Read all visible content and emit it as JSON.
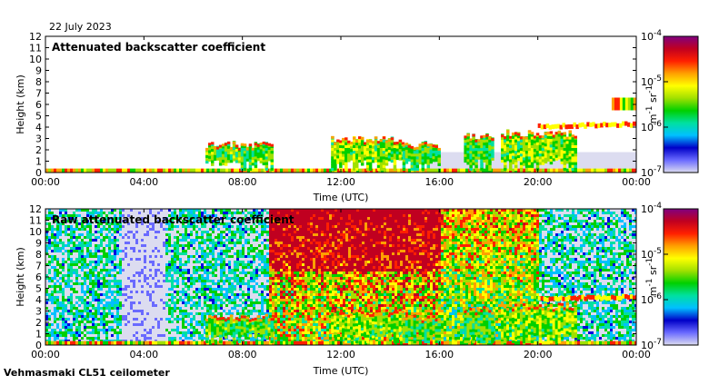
{
  "date_label": "22 July 2023",
  "instrument_label": "Vehmasmaki CL51 ceilometer",
  "colorbar": {
    "unit_main": "m",
    "unit_exp1": "-1",
    "unit_sr": "sr",
    "unit_exp2": "-1",
    "tick_labels": [
      {
        "base": "10",
        "exp": "-4"
      },
      {
        "base": "10",
        "exp": "-5"
      },
      {
        "base": "10",
        "exp": "-6"
      },
      {
        "base": "10",
        "exp": "-7"
      }
    ],
    "gradient_colors": [
      "#dcdcf0",
      "#6a6aff",
      "#0000c8",
      "#00c0ff",
      "#00e0a0",
      "#00d000",
      "#a0e000",
      "#ffff00",
      "#ffa000",
      "#ff2000",
      "#c00020",
      "#800080"
    ]
  },
  "chart_data": [
    {
      "type": "heatmap",
      "title": "Attenuated backscatter coefficient",
      "xlabel": "Time (UTC)",
      "ylabel": "Height (km)",
      "x_tick_labels": [
        "00:00",
        "04:00",
        "08:00",
        "12:00",
        "16:00",
        "20:00",
        "00:00"
      ],
      "y_tick_labels": [
        "0",
        "1",
        "2",
        "3",
        "4",
        "5",
        "6",
        "7",
        "8",
        "9",
        "10",
        "11",
        "12"
      ],
      "xlim_hours": [
        0,
        24
      ],
      "ylim_km": [
        0,
        12
      ],
      "color_scale": "log10 backscatter, 1e-7 to 1e-4 m-1 sr-1",
      "cloud_base_km": [
        {
          "hour": 6.5,
          "top": 2.3
        },
        {
          "hour": 12.0,
          "top": 2.8
        },
        {
          "hour": 14.5,
          "top": 2.3
        },
        {
          "hour": 16.0,
          "top": 2.5
        },
        {
          "hour": 17.5,
          "top": 3.0
        },
        {
          "hour": 18.5,
          "top": 3.3
        },
        {
          "hour": 20.0,
          "top": 4.0
        },
        {
          "hour": 23.5,
          "top": 4.2
        }
      ]
    },
    {
      "type": "heatmap",
      "title": "Raw attenuated backscatter coefficient",
      "xlabel": "Time (UTC)",
      "ylabel": "Height (km)",
      "x_tick_labels": [
        "00:00",
        "04:00",
        "08:00",
        "12:00",
        "16:00",
        "20:00",
        "00:00"
      ],
      "y_tick_labels": [
        "0",
        "1",
        "2",
        "3",
        "4",
        "5",
        "6",
        "7",
        "8",
        "9",
        "10",
        "11",
        "12"
      ],
      "xlim_hours": [
        0,
        24
      ],
      "ylim_km": [
        0,
        12
      ],
      "color_scale": "log10 backscatter, 1e-7 to 1e-4 m-1 sr-1"
    }
  ]
}
